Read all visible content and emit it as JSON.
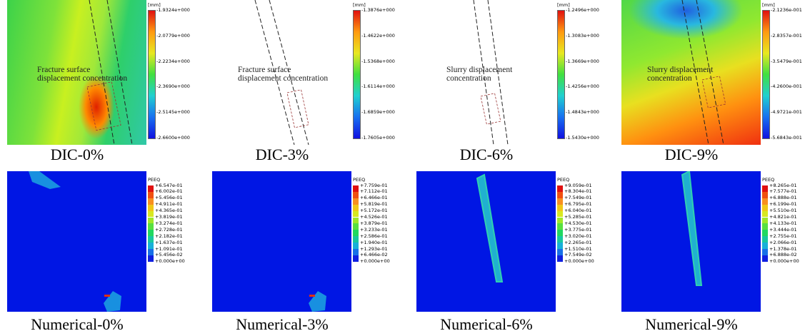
{
  "panels": [
    {
      "caption": "DIC-0%",
      "unit": "[mm]",
      "legend": [
        "-1.9324e+000",
        "-2.0779e+000",
        "-2.2234e+000",
        "-2.3690e+000",
        "-2.5145e+000",
        "-2.6600e+000"
      ],
      "annotation": [
        "Fracture surface",
        "displacement concentration"
      ]
    },
    {
      "caption": "DIC-3%",
      "unit": "[mm]",
      "legend": [
        "-1.3876e+000",
        "-1.4622e+000",
        "-1.5368e+000",
        "-1.6114e+000",
        "-1.6859e+000",
        "-1.7605e+000"
      ],
      "annotation": [
        "Fracture surface",
        "displacement concentration"
      ]
    },
    {
      "caption": "DIC-6%",
      "unit": "[mm]",
      "legend": [
        "-1.2496e+000",
        "-1.3083e+000",
        "-1.3669e+000",
        "-1.4256e+000",
        "-1.4843e+000",
        "-1.5430e+000"
      ],
      "annotation": [
        "Slurry displacement",
        "concentration"
      ]
    },
    {
      "caption": "DIC-9%",
      "unit": "[mm]",
      "legend": [
        "-2.1236e-001",
        "-2.8357e-001",
        "-3.5479e-001",
        "-4.2600e-001",
        "-4.9721e-001",
        "-5.6843e-001"
      ],
      "annotation": [
        "Slurry displacement",
        "concentration"
      ]
    },
    {
      "caption": "Numerical-0%",
      "unit": "PEEQ",
      "legend": [
        "+6.547e-01",
        "+6.002e-01",
        "+5.456e-01",
        "+4.911e-01",
        "+4.365e-01",
        "+3.819e-01",
        "+3.274e-01",
        "+2.728e-01",
        "+2.182e-01",
        "+1.637e-01",
        "+1.091e-01",
        "+5.456e-02",
        "+0.000e+00"
      ]
    },
    {
      "caption": "Numerical-3%",
      "unit": "PEEQ",
      "legend": [
        "+7.759e-01",
        "+7.112e-01",
        "+6.466e-01",
        "+5.819e-01",
        "+5.172e-01",
        "+4.526e-01",
        "+3.879e-01",
        "+3.233e-01",
        "+2.586e-01",
        "+1.940e-01",
        "+1.293e-01",
        "+6.466e-02",
        "+0.000e+00"
      ]
    },
    {
      "caption": "Numerical-6%",
      "unit": "PEEQ",
      "legend": [
        "+9.059e-01",
        "+8.304e-01",
        "+7.549e-01",
        "+6.795e-01",
        "+6.040e-01",
        "+5.285e-01",
        "+4.530e-01",
        "+3.775e-01",
        "+3.020e-01",
        "+2.265e-01",
        "+1.510e-01",
        "+7.549e-02",
        "+0.000e+00"
      ]
    },
    {
      "caption": "Numerical-9%",
      "unit": "PEEQ",
      "legend": [
        "+8.265e-01",
        "+7.577e-01",
        "+6.888e-01",
        "+6.199e-01",
        "+5.510e-01",
        "+4.821e-01",
        "+4.133e-01",
        "+3.444e-01",
        "+2.755e-01",
        "+2.066e-01",
        "+1.378e-01",
        "+6.888e-02",
        "+0.000e+00"
      ]
    }
  ]
}
